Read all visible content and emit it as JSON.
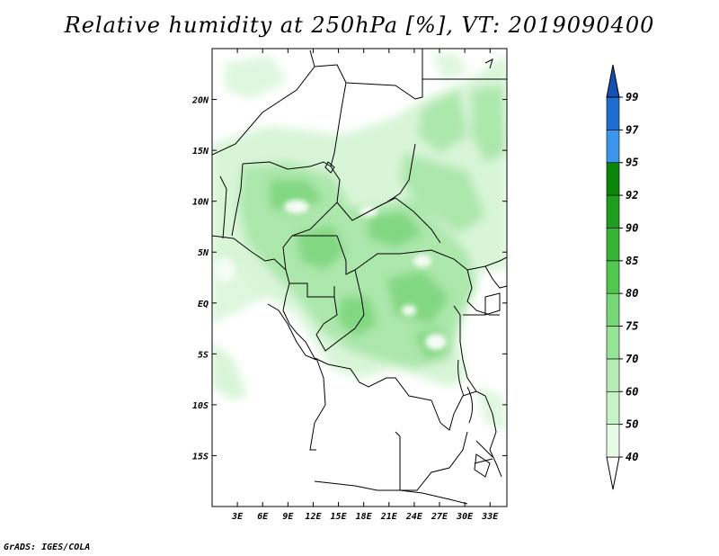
{
  "title": "Relative humidity at 250hPa [%], VT: 2019090400",
  "credit": "GrADS: IGES/COLA",
  "map": {
    "lon_range": [
      0,
      35
    ],
    "lat_range": [
      -20,
      25
    ],
    "lat_ticks": [
      {
        "value": 20,
        "label": "20N"
      },
      {
        "value": 15,
        "label": "15N"
      },
      {
        "value": 10,
        "label": "10N"
      },
      {
        "value": 5,
        "label": "5N"
      },
      {
        "value": 0,
        "label": "EQ"
      },
      {
        "value": -5,
        "label": "5S"
      },
      {
        "value": -10,
        "label": "10S"
      },
      {
        "value": -15,
        "label": "15S"
      }
    ],
    "lon_ticks": [
      {
        "value": 3,
        "label": "3E"
      },
      {
        "value": 6,
        "label": "6E"
      },
      {
        "value": 9,
        "label": "9E"
      },
      {
        "value": 12,
        "label": "12E"
      },
      {
        "value": 15,
        "label": "15E"
      },
      {
        "value": 18,
        "label": "18E"
      },
      {
        "value": 21,
        "label": "21E"
      },
      {
        "value": 24,
        "label": "24E"
      },
      {
        "value": 27,
        "label": "27E"
      },
      {
        "value": 30,
        "label": "30E"
      },
      {
        "value": 33,
        "label": "33E"
      }
    ]
  },
  "colorbar": {
    "levels": [
      {
        "label": "40",
        "color": "#e6fae6"
      },
      {
        "label": "50",
        "color": "#c8f2c8"
      },
      {
        "label": "60",
        "color": "#b4ecb4"
      },
      {
        "label": "70",
        "color": "#96e496"
      },
      {
        "label": "75",
        "color": "#78d878"
      },
      {
        "label": "80",
        "color": "#50c850"
      },
      {
        "label": "85",
        "color": "#36b436"
      },
      {
        "label": "90",
        "color": "#1e9e1e"
      },
      {
        "label": "92",
        "color": "#0a870a"
      },
      {
        "label": "95",
        "color": "#3c96f0"
      },
      {
        "label": "97",
        "color": "#1e6ed2"
      },
      {
        "label": "99",
        "color": "#1450b4"
      }
    ],
    "below_color": "#ffffff",
    "top_color": "#1450b4"
  }
}
